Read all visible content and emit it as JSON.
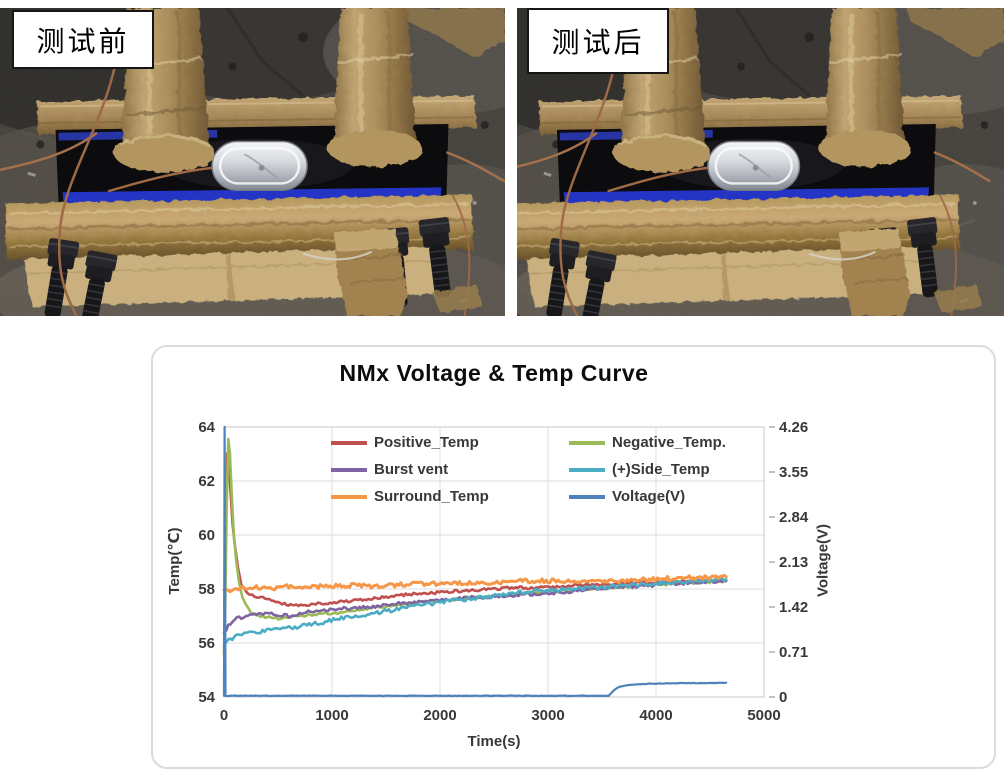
{
  "photos": {
    "before": {
      "label": "测试前"
    },
    "after": {
      "label": "测试后"
    }
  },
  "chart_data": {
    "type": "line",
    "title": "NMx Voltage & Temp Curve",
    "x_axis": {
      "label": "Time(s)",
      "min": 0,
      "max": 5000,
      "ticks": [
        0,
        1000,
        2000,
        3000,
        4000,
        5000
      ]
    },
    "y_axis_left": {
      "label": "Temp(℃)",
      "min": 54,
      "max": 64,
      "ticks": [
        54,
        56,
        58,
        60,
        62,
        64
      ]
    },
    "y_axis_right": {
      "label": "Voltage(V)",
      "min": 0,
      "max": 4.26,
      "ticks": [
        0,
        0.71,
        1.42,
        2.13,
        2.84,
        3.55,
        4.26
      ]
    },
    "grid": true,
    "legend": {
      "position": "inside-top",
      "columns": 2
    },
    "series": [
      {
        "name": "Positive_Temp",
        "color": "#C0504D",
        "axis": "left",
        "width": 2.6,
        "noise": 0.05,
        "points": [
          [
            5,
            57.2
          ],
          [
            18,
            60.5
          ],
          [
            30,
            63.0
          ],
          [
            45,
            62.5
          ],
          [
            60,
            61.6
          ],
          [
            80,
            60.4
          ],
          [
            100,
            59.6
          ],
          [
            130,
            58.8
          ],
          [
            160,
            58.2
          ],
          [
            200,
            57.9
          ],
          [
            260,
            57.75
          ],
          [
            320,
            57.7
          ],
          [
            400,
            57.65
          ],
          [
            480,
            57.55
          ],
          [
            560,
            57.45
          ],
          [
            650,
            57.4
          ],
          [
            750,
            57.4
          ],
          [
            850,
            57.45
          ],
          [
            1000,
            57.5
          ],
          [
            1150,
            57.55
          ],
          [
            1300,
            57.6
          ],
          [
            1500,
            57.7
          ],
          [
            1700,
            57.8
          ],
          [
            1900,
            57.85
          ],
          [
            2100,
            57.9
          ],
          [
            2300,
            57.95
          ],
          [
            2500,
            58.0
          ],
          [
            2700,
            58.05
          ],
          [
            2900,
            58.05
          ],
          [
            3100,
            58.1
          ],
          [
            3300,
            58.15
          ],
          [
            3500,
            58.15
          ],
          [
            3700,
            58.2
          ],
          [
            3900,
            58.25
          ],
          [
            4100,
            58.25
          ],
          [
            4300,
            58.3
          ],
          [
            4500,
            58.3
          ],
          [
            4650,
            58.35
          ]
        ]
      },
      {
        "name": "Negative_Temp.",
        "color": "#9BBB59",
        "axis": "left",
        "width": 2.6,
        "noise": 0.05,
        "points": [
          [
            0,
            55.6
          ],
          [
            12,
            57.5
          ],
          [
            25,
            61.0
          ],
          [
            40,
            63.6
          ],
          [
            55,
            63.0
          ],
          [
            70,
            61.6
          ],
          [
            90,
            60.1
          ],
          [
            110,
            59.1
          ],
          [
            140,
            58.2
          ],
          [
            170,
            57.7
          ],
          [
            200,
            57.4
          ],
          [
            250,
            57.15
          ],
          [
            300,
            57.05
          ],
          [
            400,
            56.95
          ],
          [
            500,
            56.9
          ],
          [
            600,
            56.95
          ],
          [
            700,
            57.0
          ],
          [
            800,
            57.05
          ],
          [
            1000,
            57.1
          ],
          [
            1200,
            57.2
          ],
          [
            1400,
            57.3
          ],
          [
            1600,
            57.4
          ],
          [
            1800,
            57.5
          ],
          [
            2000,
            57.55
          ],
          [
            2200,
            57.65
          ],
          [
            2400,
            57.7
          ],
          [
            2600,
            57.75
          ],
          [
            2800,
            57.85
          ],
          [
            3000,
            57.9
          ],
          [
            3200,
            57.95
          ],
          [
            3400,
            58.0
          ],
          [
            3600,
            58.05
          ],
          [
            3800,
            58.1
          ],
          [
            4000,
            58.15
          ],
          [
            4200,
            58.2
          ],
          [
            4400,
            58.25
          ],
          [
            4650,
            58.3
          ]
        ]
      },
      {
        "name": "Burst vent",
        "color": "#8064A2",
        "axis": "left",
        "width": 2.6,
        "noise": 0.06,
        "points": [
          [
            0,
            56.4
          ],
          [
            60,
            56.75
          ],
          [
            120,
            56.9
          ],
          [
            200,
            57.0
          ],
          [
            300,
            57.05
          ],
          [
            400,
            57.1
          ],
          [
            500,
            57.05
          ],
          [
            600,
            57.0
          ],
          [
            700,
            57.1
          ],
          [
            800,
            57.15
          ],
          [
            1000,
            57.25
          ],
          [
            1200,
            57.3
          ],
          [
            1400,
            57.35
          ],
          [
            1600,
            57.45
          ],
          [
            1800,
            57.5
          ],
          [
            2000,
            57.6
          ],
          [
            2200,
            57.65
          ],
          [
            2400,
            57.7
          ],
          [
            2600,
            57.75
          ],
          [
            2800,
            57.8
          ],
          [
            3000,
            57.85
          ],
          [
            3200,
            57.9
          ],
          [
            3400,
            58.0
          ],
          [
            3600,
            58.05
          ],
          [
            3800,
            58.1
          ],
          [
            4000,
            58.15
          ],
          [
            4200,
            58.2
          ],
          [
            4400,
            58.25
          ],
          [
            4650,
            58.3
          ]
        ]
      },
      {
        "name": "(+)Side_Temp",
        "color": "#4BACC6",
        "axis": "left",
        "width": 2.6,
        "noise": 0.07,
        "points": [
          [
            0,
            55.95
          ],
          [
            60,
            56.15
          ],
          [
            150,
            56.3
          ],
          [
            300,
            56.4
          ],
          [
            450,
            56.5
          ],
          [
            600,
            56.55
          ],
          [
            750,
            56.65
          ],
          [
            900,
            56.75
          ],
          [
            1050,
            56.9
          ],
          [
            1200,
            57.0
          ],
          [
            1400,
            57.1
          ],
          [
            1600,
            57.25
          ],
          [
            1800,
            57.4
          ],
          [
            2000,
            57.5
          ],
          [
            2200,
            57.6
          ],
          [
            2400,
            57.7
          ],
          [
            2600,
            57.8
          ],
          [
            2800,
            57.9
          ],
          [
            3000,
            57.95
          ],
          [
            3200,
            58.0
          ],
          [
            3400,
            58.05
          ],
          [
            3600,
            58.1
          ],
          [
            3800,
            58.15
          ],
          [
            4000,
            58.2
          ],
          [
            4200,
            58.25
          ],
          [
            4400,
            58.3
          ],
          [
            4650,
            58.35
          ]
        ]
      },
      {
        "name": "Surround_Temp",
        "color": "#F79646",
        "axis": "left",
        "width": 3.0,
        "noise": 0.08,
        "points": [
          [
            0,
            57.9
          ],
          [
            150,
            58.05
          ],
          [
            300,
            58.05
          ],
          [
            450,
            58.0
          ],
          [
            600,
            58.1
          ],
          [
            800,
            58.1
          ],
          [
            1000,
            58.1
          ],
          [
            1200,
            58.15
          ],
          [
            1400,
            58.1
          ],
          [
            1600,
            58.15
          ],
          [
            1800,
            58.2
          ],
          [
            2000,
            58.2
          ],
          [
            2200,
            58.2
          ],
          [
            2400,
            58.25
          ],
          [
            2600,
            58.25
          ],
          [
            2800,
            58.3
          ],
          [
            3000,
            58.3
          ],
          [
            3300,
            58.3
          ],
          [
            3600,
            58.3
          ],
          [
            3900,
            58.35
          ],
          [
            4200,
            58.4
          ],
          [
            4650,
            58.45
          ]
        ]
      },
      {
        "name": "Voltage(V)",
        "color": "#4F81BD",
        "axis": "right",
        "width": 2.2,
        "noise": 0.004,
        "points": [
          [
            0,
            0.02
          ],
          [
            6,
            4.26
          ],
          [
            14,
            0.02
          ],
          [
            500,
            0.02
          ],
          [
            1500,
            0.02
          ],
          [
            2500,
            0.02
          ],
          [
            3560,
            0.02
          ],
          [
            3590,
            0.07
          ],
          [
            3620,
            0.12
          ],
          [
            3660,
            0.16
          ],
          [
            3720,
            0.18
          ],
          [
            3800,
            0.195
          ],
          [
            3950,
            0.21
          ],
          [
            4100,
            0.215
          ],
          [
            4300,
            0.22
          ],
          [
            4500,
            0.22
          ],
          [
            4650,
            0.225
          ]
        ]
      }
    ]
  }
}
